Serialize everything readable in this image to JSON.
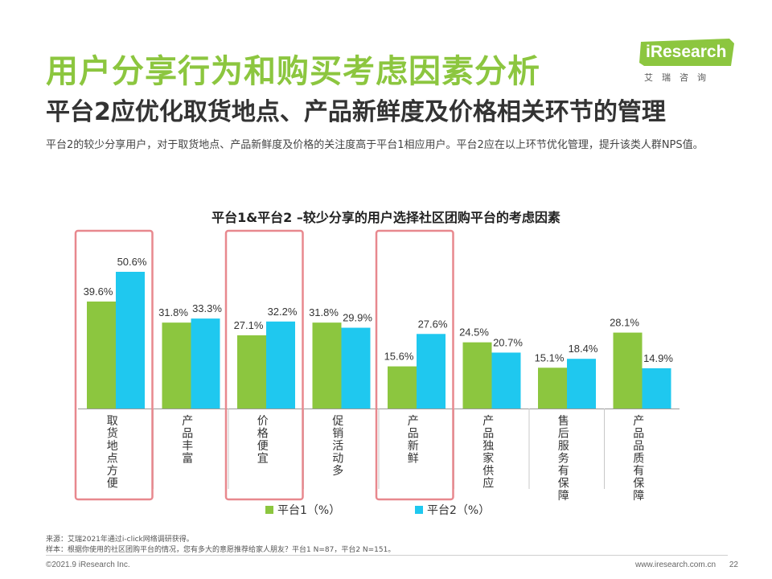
{
  "header": {
    "title": "用户分享行为和购买考虑因素分析",
    "subtitle": "平台2应优化取货地点、产品新鲜度及价格相关环节的管理",
    "description": "平台2的较少分享用户，对于取货地点、产品新鲜度及价格的关注度高于平台1相应用户。平台2应在以上环节优化管理，提升该类人群NPS值。"
  },
  "logo": {
    "name": "iResearch",
    "cn": "艾瑞咨询"
  },
  "colors": {
    "title_green": "#8cc63f",
    "platform1": "#8cc63f",
    "platform2": "#1fc8ef",
    "highlight_box": "#e8888e"
  },
  "chart_data": {
    "type": "bar",
    "title": "平台1&平台2 –较少分享的用户选择社区团购平台的考虑因素",
    "categories": [
      "取货地点方便",
      "产品丰富",
      "价格便宜",
      "促销活动多",
      "产品新鲜",
      "产品独家供应",
      "售后服务有保障",
      "产品品质有保障"
    ],
    "series": [
      {
        "name": "平台1（%）",
        "values": [
          39.6,
          31.8,
          27.1,
          31.8,
          15.6,
          24.5,
          15.1,
          28.1
        ]
      },
      {
        "name": "平台2（%）",
        "values": [
          50.6,
          33.3,
          32.2,
          29.9,
          27.6,
          20.7,
          18.4,
          14.9
        ]
      }
    ],
    "value_labels": {
      "platform1": [
        "39.6%",
        "31.8%",
        "27.1%",
        "31.8%",
        "15.6%",
        "24.5%",
        "15.1%",
        "28.1%"
      ],
      "platform2": [
        "50.6%",
        "33.3%",
        "32.2%",
        "29.9%",
        "27.6%",
        "20.7%",
        "18.4%",
        "14.9%"
      ]
    },
    "highlighted_categories": [
      "取货地点方便",
      "价格便宜",
      "产品新鲜"
    ],
    "ylim": [
      0,
      60
    ],
    "legend_position": "bottom",
    "grid": false
  },
  "footer": {
    "source": "来源：艾瑞2021年通过i-click网络调研获得。",
    "sample": "样本：根据你使用的社区团购平台的情况，您有多大的意愿推荐给家人朋友？平台1 N=87，平台2 N=151。",
    "copyright": "©2021.9 iResearch Inc.",
    "website": "www.iresearch.com.cn",
    "page": "22"
  }
}
